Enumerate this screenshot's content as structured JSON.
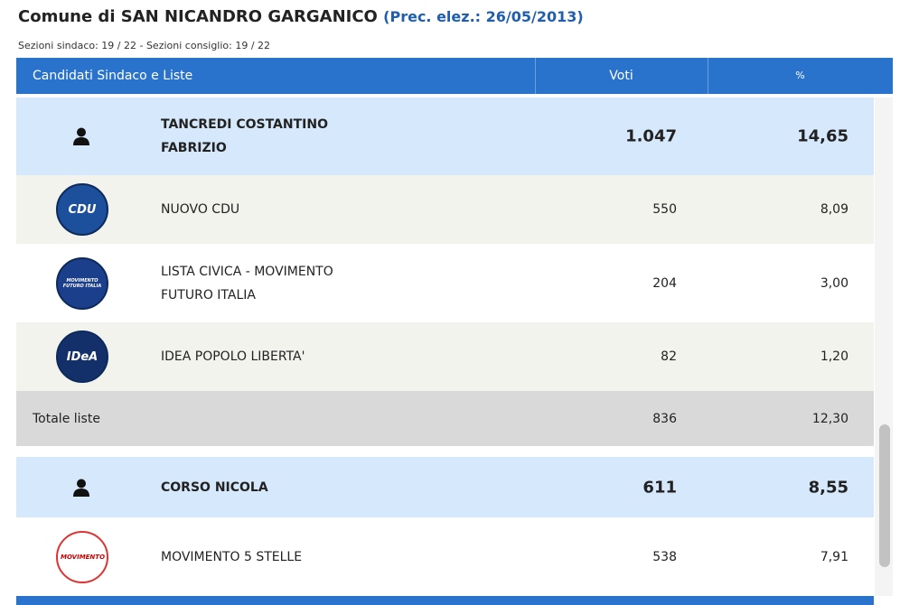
{
  "header": {
    "title": "Comune di SAN NICANDRO GARGANICO",
    "prev": "(Prec. elez.: 26/05/2013)",
    "sections": "Sezioni sindaco: 19 / 22 - Sezioni consiglio: 19 / 22"
  },
  "table": {
    "columns": [
      "Candidati Sindaco e Liste",
      "Voti",
      "%"
    ],
    "rows": [
      {
        "kind": "candidate",
        "name": "TANCREDI COSTANTINO FABRIZIO",
        "votes": "1.047",
        "pct": "14,65"
      },
      {
        "kind": "list",
        "logo": "CDU",
        "name": "NUOVO CDU",
        "votes": "550",
        "pct": "8,09"
      },
      {
        "kind": "list",
        "logo": "MOVIMENTO FUTURO ITALIA",
        "name": "LISTA CIVICA - MOVIMENTO FUTURO ITALIA",
        "votes": "204",
        "pct": "3,00"
      },
      {
        "kind": "list",
        "logo": "IDeA",
        "name": "IDEA POPOLO LIBERTA'",
        "votes": "82",
        "pct": "1,20"
      },
      {
        "kind": "total",
        "name": "Totale liste",
        "votes": "836",
        "pct": "12,30"
      },
      {
        "kind": "candidate",
        "name": "CORSO NICOLA",
        "votes": "611",
        "pct": "8,55"
      },
      {
        "kind": "list",
        "logo": "MOVIMENTO",
        "name": "MOVIMENTO 5 STELLE",
        "votes": "538",
        "pct": "7,91"
      }
    ]
  }
}
